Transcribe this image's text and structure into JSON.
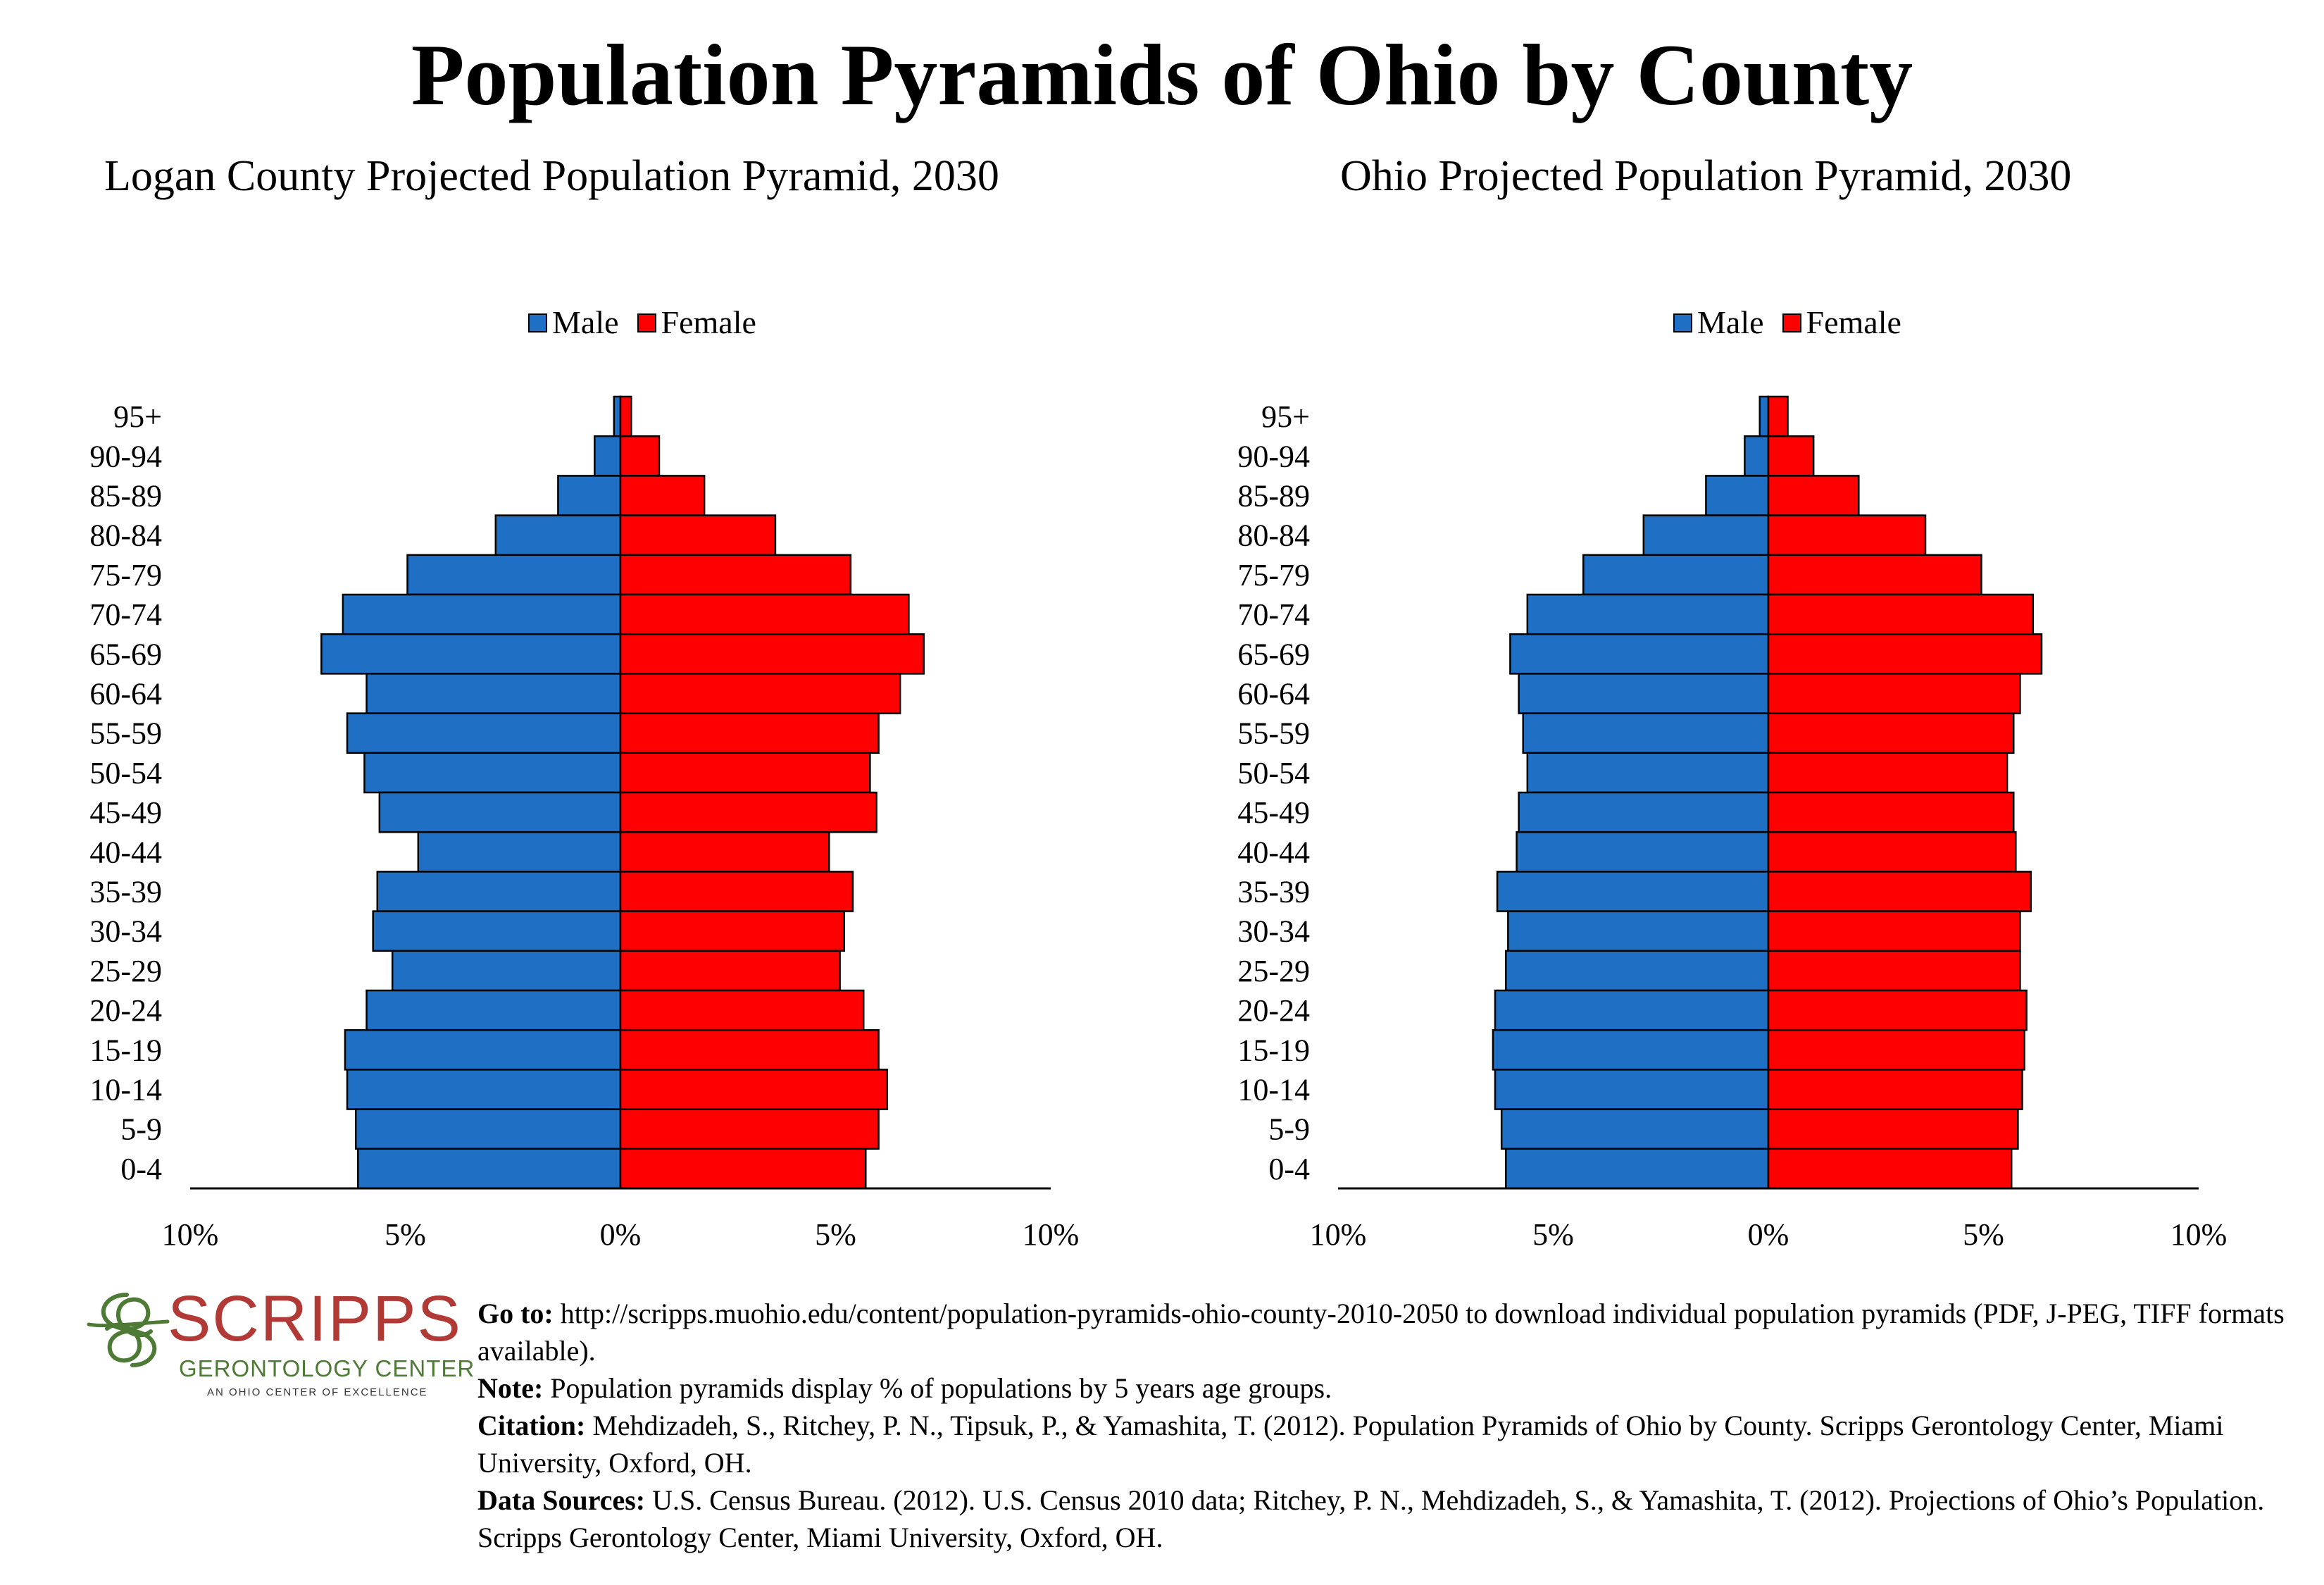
{
  "title": "Population Pyramids of Ohio by County",
  "legend": {
    "male": "Male",
    "female": "Female",
    "male_color": "#1f6fc5",
    "female_color": "#ff0000"
  },
  "chart_data": [
    {
      "type": "bar",
      "orientation": "horizontal-pyramid",
      "title": "Logan County Projected Population Pyramid, 2030",
      "categories": [
        "95+",
        "90-94",
        "85-89",
        "80-84",
        "75-79",
        "70-74",
        "65-69",
        "60-64",
        "55-59",
        "50-54",
        "45-49",
        "40-44",
        "35-39",
        "30-34",
        "25-29",
        "20-24",
        "15-19",
        "10-14",
        "5-9",
        "0-4"
      ],
      "series": [
        {
          "name": "Male",
          "color": "#1f6fc5",
          "values": [
            0.15,
            0.6,
            1.45,
            2.9,
            4.95,
            6.45,
            6.95,
            5.9,
            6.35,
            5.95,
            5.6,
            4.7,
            5.65,
            5.75,
            5.3,
            5.9,
            6.4,
            6.35,
            6.15,
            6.1
          ]
        },
        {
          "name": "Female",
          "color": "#ff0000",
          "values": [
            0.25,
            0.9,
            1.95,
            3.6,
            5.35,
            6.7,
            7.05,
            6.5,
            6.0,
            5.8,
            5.95,
            4.85,
            5.4,
            5.2,
            5.1,
            5.65,
            6.0,
            6.2,
            6.0,
            5.7
          ]
        }
      ],
      "xlim": [
        -10,
        10
      ],
      "x_tick_labels": [
        "10%",
        "5%",
        "0%",
        "5%",
        "10%"
      ]
    },
    {
      "type": "bar",
      "orientation": "horizontal-pyramid",
      "title": "Ohio Projected Population Pyramid, 2030",
      "categories": [
        "95+",
        "90-94",
        "85-89",
        "80-84",
        "75-79",
        "70-74",
        "65-69",
        "60-64",
        "55-59",
        "50-54",
        "45-49",
        "40-44",
        "35-39",
        "30-34",
        "25-29",
        "20-24",
        "15-19",
        "10-14",
        "5-9",
        "0-4"
      ],
      "series": [
        {
          "name": "Male",
          "color": "#1f6fc5",
          "values": [
            0.2,
            0.55,
            1.45,
            2.9,
            4.3,
            5.6,
            6.0,
            5.8,
            5.7,
            5.6,
            5.8,
            5.85,
            6.3,
            6.05,
            6.1,
            6.35,
            6.4,
            6.35,
            6.2,
            6.1
          ]
        },
        {
          "name": "Female",
          "color": "#ff0000",
          "values": [
            0.45,
            1.05,
            2.1,
            3.65,
            4.95,
            6.15,
            6.35,
            5.85,
            5.7,
            5.55,
            5.7,
            5.75,
            6.1,
            5.85,
            5.85,
            6.0,
            5.95,
            5.9,
            5.8,
            5.65
          ]
        }
      ],
      "xlim": [
        -10,
        10
      ],
      "x_tick_labels": [
        "10%",
        "5%",
        "0%",
        "5%",
        "10%"
      ]
    }
  ],
  "logo": {
    "word": "SCRIPPS",
    "sub": "GERONTOLOGY CENTER",
    "tagline": "AN OHIO CENTER OF EXCELLENCE"
  },
  "notes": {
    "goto_label": "Go to:",
    "goto_text": " http://scripps.muohio.edu/content/population-pyramids-ohio-county-2010-2050 to download individual population pyramids (PDF, J-PEG, TIFF formats available).",
    "note_label": "Note:",
    "note_text": " Population pyramids display % of populations by 5 years age groups.",
    "citation_label": "Citation:",
    "citation_text": " Mehdizadeh, S., Ritchey, P. N., Tipsuk, P., & Yamashita, T. (2012). Population Pyramids of Ohio by County. Scripps Gerontology Center, Miami University, Oxford, OH.",
    "sources_label": "Data Sources:",
    "sources_text": " U.S. Census Bureau. (2012). U.S. Census 2010 data; Ritchey, P. N., Mehdizadeh, S., & Yamashita, T. (2012). Projections of Ohio’s Population. Scripps Gerontology Center, Miami University, Oxford, OH."
  }
}
